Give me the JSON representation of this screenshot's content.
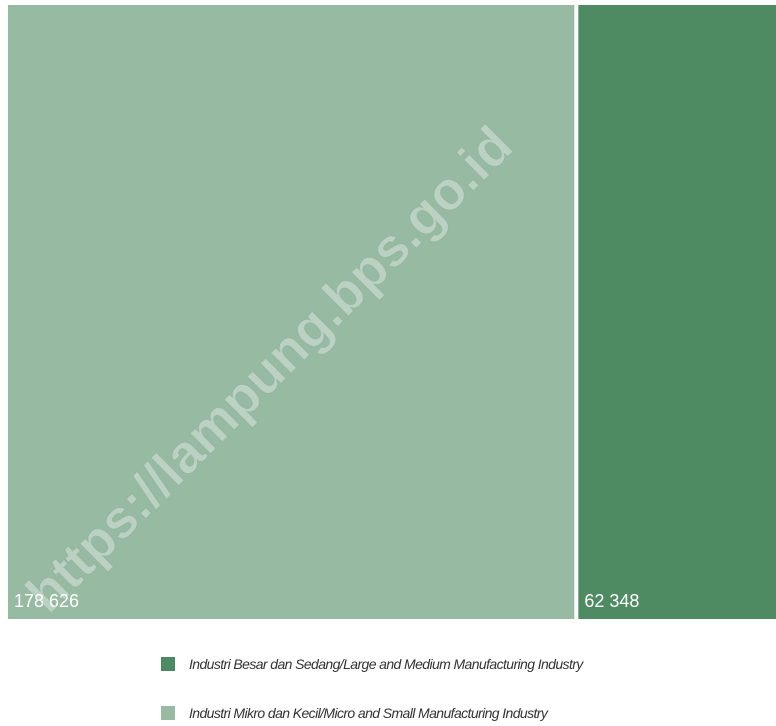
{
  "chart_data": {
    "type": "treemap",
    "categories": [
      "Industri Mikro dan Kecil/Micro and Small Manufacturing Industry",
      "Industri Besar dan Sedang/Large and Medium Manufacturing Industry"
    ],
    "values": [
      178626,
      62348
    ],
    "value_labels": [
      "178 626",
      "62 348"
    ],
    "colors": [
      "#97bba2",
      "#4e8b63"
    ],
    "watermark": "https://lampung.bps.go.id"
  }
}
